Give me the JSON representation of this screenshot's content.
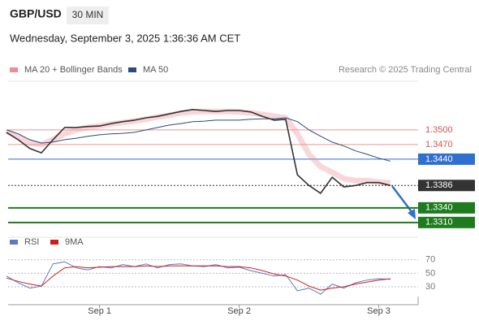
{
  "header": {
    "symbol": "GBP/USD",
    "interval": "30 MIN",
    "datetime": "Wednesday, September 3, 2025 1:36:36 AM CET",
    "credit": "Research © 2025 Trading Central"
  },
  "chart_data": [
    {
      "type": "line",
      "ylim": [
        1.3283,
        1.36
      ],
      "series": [
        {
          "name": "MA 20 + Bollinger Bands",
          "color": "#f08a94",
          "values": [
            1.3497,
            1.3487,
            1.3473,
            1.347,
            1.348,
            1.3492,
            1.35,
            1.3505,
            1.3508,
            1.3512,
            1.3515,
            1.3518,
            1.3522,
            1.3527,
            1.353,
            1.3535,
            1.3537,
            1.3538,
            1.3538,
            1.3538,
            1.3537,
            1.3535,
            1.3532,
            1.3528,
            1.3525,
            1.3492,
            1.345,
            1.3425,
            1.3413,
            1.34,
            1.3396,
            1.3396,
            1.3393,
            1.3391
          ]
        },
        {
          "name": "MA 50",
          "color": "#2b4a7e",
          "values": [
            1.35,
            1.3492,
            1.348,
            1.3473,
            1.3475,
            1.348,
            1.3483,
            1.3487,
            1.349,
            1.3492,
            1.3493,
            1.3495,
            1.35,
            1.3505,
            1.351,
            1.3513,
            1.3517,
            1.3518,
            1.352,
            1.352,
            1.352,
            1.3522,
            1.3523,
            1.3523,
            1.3525,
            1.3517,
            1.35,
            1.3487,
            1.3475,
            1.3467,
            1.3457,
            1.345,
            1.3442,
            1.3436
          ]
        },
        {
          "color": "#333333",
          "values": [
            1.3495,
            1.348,
            1.3462,
            1.3453,
            1.348,
            1.3505,
            1.3505,
            1.3507,
            1.3508,
            1.3513,
            1.3517,
            1.352,
            1.3525,
            1.3528,
            1.3533,
            1.3538,
            1.3542,
            1.354,
            1.3538,
            1.354,
            1.354,
            1.3537,
            1.3528,
            1.352,
            1.3522,
            1.3408,
            1.3386,
            1.337,
            1.3403,
            1.3383,
            1.3386,
            1.3392,
            1.3392,
            1.3386
          ]
        }
      ],
      "levels": [
        {
          "value": 1.35,
          "label": "1.3500",
          "color": "#d9534f",
          "box": false
        },
        {
          "value": 1.347,
          "label": "1.3470",
          "color": "#d9534f",
          "box": false
        },
        {
          "value": 1.344,
          "label": "1.3440",
          "color": "#2f6fcf",
          "box": true
        },
        {
          "value": 1.3386,
          "color": "#333333",
          "box": true
        },
        {
          "value": 1.334,
          "label": "1.3340",
          "color": "#1e7b1e",
          "box": true
        },
        {
          "value": 1.331,
          "label": "1.3310",
          "color": "#1e7b1e",
          "box": true
        }
      ]
    },
    {
      "type": "line",
      "categories": [
        null,
        null,
        null,
        null,
        null,
        null,
        null,
        null,
        "Sep 1",
        null,
        null,
        null,
        null,
        null,
        null,
        null,
        null,
        null,
        null,
        null,
        "Sep 2",
        null,
        null,
        null,
        null,
        null,
        null,
        null,
        null,
        null,
        null,
        null,
        "Sep 3",
        null
      ],
      "ylim": [
        7,
        77
      ],
      "yticks": [
        30,
        50,
        70
      ],
      "grid": true,
      "series": [
        {
          "name": "RSI",
          "color": "#5b7bc4",
          "values": [
            46,
            36,
            28,
            31,
            64,
            67,
            58,
            55,
            60,
            58,
            63,
            60,
            64,
            58,
            63,
            64,
            61,
            60,
            63,
            58,
            59,
            54,
            50,
            46,
            48,
            24,
            28,
            19,
            34,
            28,
            36,
            40,
            42,
            41
          ]
        },
        {
          "name": "9MA",
          "color": "#cc1f1f",
          "values": [
            43,
            38,
            34,
            31,
            46,
            58,
            60,
            58,
            59,
            60,
            60,
            60,
            61,
            60,
            61,
            61,
            61,
            61,
            61,
            60,
            60,
            58,
            54,
            49,
            46,
            40,
            31,
            25,
            28,
            30,
            34,
            37,
            40,
            42
          ]
        }
      ]
    }
  ]
}
